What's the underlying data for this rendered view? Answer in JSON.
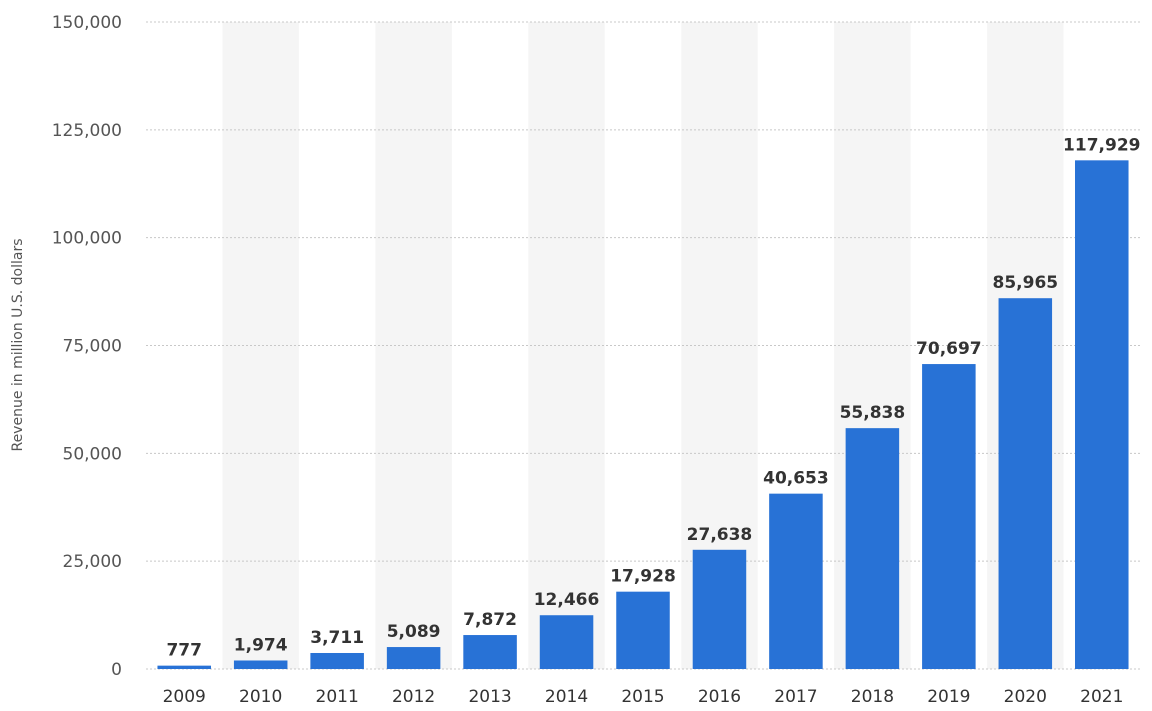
{
  "chart_data": {
    "type": "bar",
    "title": "",
    "xlabel": "",
    "ylabel": "Revenue in million U.S. dollars",
    "ylim": [
      0,
      150000
    ],
    "yticks": [
      0,
      25000,
      50000,
      75000,
      100000,
      125000,
      150000
    ],
    "ytick_labels": [
      "0",
      "25,000",
      "50,000",
      "75,000",
      "100,000",
      "125,000",
      "150,000"
    ],
    "categories": [
      "2009",
      "2010",
      "2011",
      "2012",
      "2013",
      "2014",
      "2015",
      "2016",
      "2017",
      "2018",
      "2019",
      "2020",
      "2021"
    ],
    "values": [
      777,
      1974,
      3711,
      5089,
      7872,
      12466,
      17928,
      27638,
      40653,
      55838,
      70697,
      85965,
      117929
    ],
    "value_labels": [
      "777",
      "1,974",
      "3,711",
      "5,089",
      "7,872",
      "12,466",
      "17,928",
      "27,638",
      "40,653",
      "55,838",
      "70,697",
      "85,965",
      "117,929"
    ],
    "bar_color": "#2872d6",
    "band_color": "#f5f5f5",
    "grid": true,
    "legend": "none"
  }
}
